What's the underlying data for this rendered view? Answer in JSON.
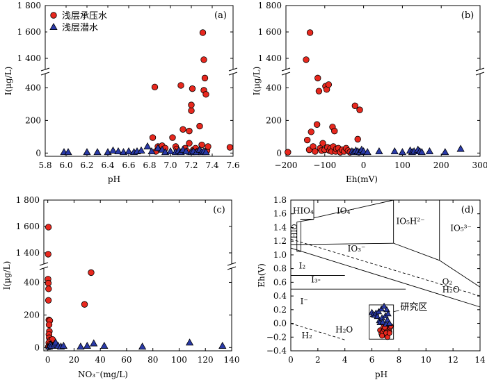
{
  "legend": {
    "confined": "浅层承压水",
    "phreatic": "浅层潜水"
  },
  "colors": {
    "confined_fill": "#e8281e",
    "phreatic_fill": "#2a3aa8",
    "marker_stroke": "#000000"
  },
  "chart_data": [
    {
      "panel": "(a)",
      "type": "scatter",
      "xlabel": "pH",
      "ylabel": "I(μg/L)",
      "xlim": [
        5.8,
        7.6
      ],
      "ylim_lower": [
        -20,
        500
      ],
      "ylim_upper": [
        1300,
        1800
      ],
      "axis_break": true,
      "x_ticks": [
        "5.8",
        "6.0",
        "6.2",
        "6.4",
        "6.6",
        "6.8",
        "7.0",
        "7.2",
        "7.4",
        "7.6"
      ],
      "y_ticks": [
        "0",
        "200",
        "400",
        "1 400",
        "1 600",
        "1 800"
      ],
      "series": [
        {
          "name": "浅层承压水",
          "marker": "circle",
          "points": [
            [
              6.83,
              95
            ],
            [
              6.85,
              405
            ],
            [
              6.86,
              10
            ],
            [
              6.88,
              40
            ],
            [
              6.9,
              25
            ],
            [
              6.92,
              45
            ],
            [
              6.95,
              30
            ],
            [
              7.02,
              95
            ],
            [
              7.05,
              40
            ],
            [
              7.06,
              25
            ],
            [
              7.1,
              415
            ],
            [
              7.12,
              145
            ],
            [
              7.14,
              30
            ],
            [
              7.16,
              10
            ],
            [
              7.18,
              135
            ],
            [
              7.18,
              60
            ],
            [
              7.2,
              260
            ],
            [
              7.2,
              295
            ],
            [
              7.21,
              395
            ],
            [
              7.22,
              20
            ],
            [
              7.24,
              30
            ],
            [
              7.26,
              10
            ],
            [
              7.28,
              165
            ],
            [
              7.3,
              50
            ],
            [
              7.31,
              1595
            ],
            [
              7.32,
              1390
            ],
            [
              7.32,
              385
            ],
            [
              7.33,
              460
            ],
            [
              7.34,
              360
            ],
            [
              7.35,
              15
            ],
            [
              7.36,
              40
            ],
            [
              7.57,
              35
            ]
          ]
        },
        {
          "name": "浅层潜水",
          "marker": "triangle",
          "points": [
            [
              5.98,
              5
            ],
            [
              6.02,
              5
            ],
            [
              6.2,
              5
            ],
            [
              6.3,
              5
            ],
            [
              6.4,
              5
            ],
            [
              6.45,
              15
            ],
            [
              6.5,
              10
            ],
            [
              6.55,
              5
            ],
            [
              6.6,
              10
            ],
            [
              6.65,
              5
            ],
            [
              6.68,
              10
            ],
            [
              6.72,
              15
            ],
            [
              6.78,
              40
            ],
            [
              6.82,
              10
            ],
            [
              6.88,
              30
            ],
            [
              6.92,
              20
            ],
            [
              6.95,
              5
            ],
            [
              7.0,
              10
            ],
            [
              7.05,
              5
            ],
            [
              7.08,
              15
            ],
            [
              7.1,
              5
            ],
            [
              7.12,
              20
            ],
            [
              7.15,
              10
            ],
            [
              7.2,
              5
            ],
            [
              7.22,
              10
            ],
            [
              7.25,
              5
            ],
            [
              7.28,
              20
            ],
            [
              7.3,
              5
            ],
            [
              7.32,
              10
            ],
            [
              7.34,
              5
            ]
          ]
        }
      ]
    },
    {
      "panel": "(b)",
      "type": "scatter",
      "xlabel": "Eh(mV)",
      "ylabel": "I(μg/L)",
      "xlim": [
        -200,
        300
      ],
      "ylim_lower": [
        -20,
        500
      ],
      "ylim_upper": [
        1300,
        1800
      ],
      "axis_break": true,
      "x_ticks": [
        "−200",
        "−100",
        "0",
        "100",
        "200",
        "300"
      ],
      "y_ticks": [
        "0",
        "200",
        "400",
        "1 400",
        "1 600",
        "1 800"
      ],
      "series": [
        {
          "name": "浅层承压水",
          "marker": "circle",
          "points": [
            [
              -195,
              5
            ],
            [
              -148,
              1390
            ],
            [
              -138,
              1595
            ],
            [
              -145,
              80
            ],
            [
              -140,
              20
            ],
            [
              -135,
              130
            ],
            [
              -130,
              40
            ],
            [
              -125,
              10
            ],
            [
              -120,
              175
            ],
            [
              -118,
              460
            ],
            [
              -115,
              380
            ],
            [
              -112,
              30
            ],
            [
              -108,
              15
            ],
            [
              -105,
              60
            ],
            [
              -100,
              20
            ],
            [
              -98,
              410
            ],
            [
              -95,
              390
            ],
            [
              -93,
              35
            ],
            [
              -90,
              420
            ],
            [
              -88,
              15
            ],
            [
              -85,
              30
            ],
            [
              -82,
              10
            ],
            [
              -80,
              160
            ],
            [
              -78,
              40
            ],
            [
              -75,
              135
            ],
            [
              -72,
              10
            ],
            [
              -70,
              25
            ],
            [
              -65,
              30
            ],
            [
              -60,
              5
            ],
            [
              -55,
              20
            ],
            [
              -50,
              10
            ],
            [
              -45,
              30
            ],
            [
              -40,
              15
            ],
            [
              -35,
              5
            ],
            [
              -22,
              290
            ],
            [
              -10,
              265
            ],
            [
              -15,
              85
            ],
            [
              -12,
              5
            ]
          ]
        },
        {
          "name": "浅层潜水",
          "marker": "triangle",
          "points": [
            [
              -30,
              10
            ],
            [
              -25,
              5
            ],
            [
              -20,
              15
            ],
            [
              -15,
              10
            ],
            [
              -10,
              5
            ],
            [
              -5,
              20
            ],
            [
              0,
              10
            ],
            [
              10,
              5
            ],
            [
              40,
              10
            ],
            [
              80,
              10
            ],
            [
              100,
              5
            ],
            [
              120,
              15
            ],
            [
              125,
              5
            ],
            [
              130,
              10
            ],
            [
              140,
              20
            ],
            [
              145,
              10
            ],
            [
              150,
              5
            ],
            [
              170,
              10
            ],
            [
              210,
              5
            ],
            [
              250,
              25
            ]
          ]
        }
      ]
    },
    {
      "panel": "(c)",
      "type": "scatter",
      "xlabel": "NO₃⁻(mg/L)",
      "ylabel": "I(μg/L)",
      "xlim": [
        -3,
        140
      ],
      "ylim_lower": [
        -20,
        500
      ],
      "ylim_upper": [
        1300,
        1800
      ],
      "axis_break": true,
      "x_ticks": [
        "0",
        "20",
        "40",
        "60",
        "80",
        "100",
        "120",
        "140"
      ],
      "y_ticks": [
        "0",
        "200",
        "400",
        "1 400",
        "1 600",
        "1 800"
      ],
      "series": [
        {
          "name": "浅层承压水",
          "marker": "circle",
          "points": [
            [
              0.5,
              1595
            ],
            [
              0.3,
              1390
            ],
            [
              0.2,
              420
            ],
            [
              0.4,
              395
            ],
            [
              0.6,
              360
            ],
            [
              0.5,
              290
            ],
            [
              0.8,
              170
            ],
            [
              1.5,
              165
            ],
            [
              1.0,
              140
            ],
            [
              1.2,
              100
            ],
            [
              0.9,
              80
            ],
            [
              1.1,
              60
            ],
            [
              2.0,
              45
            ],
            [
              3.5,
              50
            ],
            [
              0.8,
              30
            ],
            [
              1.8,
              20
            ],
            [
              2.5,
              10
            ],
            [
              0.5,
              5
            ],
            [
              1.5,
              5
            ],
            [
              28,
              265
            ],
            [
              33,
              460
            ]
          ]
        },
        {
          "name": "浅层潜水",
          "marker": "triangle",
          "points": [
            [
              1,
              5
            ],
            [
              2,
              15
            ],
            [
              3,
              10
            ],
            [
              5,
              20
            ],
            [
              6,
              30
            ],
            [
              8,
              10
            ],
            [
              10,
              5
            ],
            [
              12,
              10
            ],
            [
              25,
              5
            ],
            [
              30,
              10
            ],
            [
              35,
              25
            ],
            [
              43,
              10
            ],
            [
              72,
              5
            ],
            [
              108,
              30
            ],
            [
              133,
              10
            ]
          ]
        }
      ]
    },
    {
      "panel": "(d)",
      "type": "scatter",
      "xlabel": "pH",
      "ylabel": "Eh(V)",
      "xlim": [
        0,
        14
      ],
      "ylim": [
        -0.4,
        1.8
      ],
      "x_ticks": [
        "0",
        "2",
        "4",
        "6",
        "8",
        "10",
        "12",
        "14"
      ],
      "y_ticks": [
        "−0.4",
        "−0.2",
        "0.0",
        "0.2",
        "0.4",
        "0.6",
        "0.8",
        "1.0",
        "1.2",
        "1.4",
        "1.6",
        "1.8"
      ],
      "species_labels": [
        "HIO₄",
        "HIO",
        "IO₄⁻",
        "IO₅H²⁻",
        "IO₅³⁻",
        "IO₃⁻",
        "I₂",
        "I₃-",
        "I⁻",
        "O₂",
        "H₂O",
        "H₂O",
        "H₂"
      ],
      "study_area_label": "研究区",
      "study_area_box": {
        "ph": [
          5.8,
          7.6
        ],
        "eh": [
          -0.23,
          0.27
        ]
      },
      "series": [
        {
          "name": "浅层承压水",
          "marker": "circle",
          "points": [
            [
              6.6,
              -0.1
            ],
            [
              6.7,
              -0.15
            ],
            [
              6.8,
              -0.12
            ],
            [
              6.9,
              -0.09
            ],
            [
              7.0,
              -0.17
            ],
            [
              7.1,
              -0.1
            ],
            [
              7.2,
              -0.08
            ],
            [
              7.3,
              -0.12
            ],
            [
              6.85,
              -0.05
            ],
            [
              7.05,
              -0.14
            ],
            [
              7.25,
              -0.05
            ],
            [
              7.35,
              -0.06
            ],
            [
              7.4,
              -0.04
            ],
            [
              6.75,
              -0.18
            ],
            [
              7.15,
              -0.2
            ],
            [
              7.3,
              -0.14
            ],
            [
              6.95,
              -0.06
            ]
          ]
        },
        {
          "name": "浅层潜水",
          "marker": "triangle",
          "points": [
            [
              6.0,
              0.16
            ],
            [
              6.1,
              0.13
            ],
            [
              6.2,
              0.12
            ],
            [
              6.3,
              0.15
            ],
            [
              6.4,
              0.1
            ],
            [
              6.5,
              0.17
            ],
            [
              6.55,
              0.04
            ],
            [
              6.6,
              0.01
            ],
            [
              6.7,
              0.21
            ],
            [
              6.75,
              0.08
            ],
            [
              6.8,
              0.02
            ],
            [
              6.9,
              0.25
            ],
            [
              7.0,
              0.11
            ],
            [
              7.05,
              -0.01
            ],
            [
              7.1,
              0.2
            ],
            [
              7.15,
              0.05
            ],
            [
              7.2,
              0.14
            ],
            [
              7.3,
              0.0
            ]
          ]
        }
      ]
    }
  ]
}
